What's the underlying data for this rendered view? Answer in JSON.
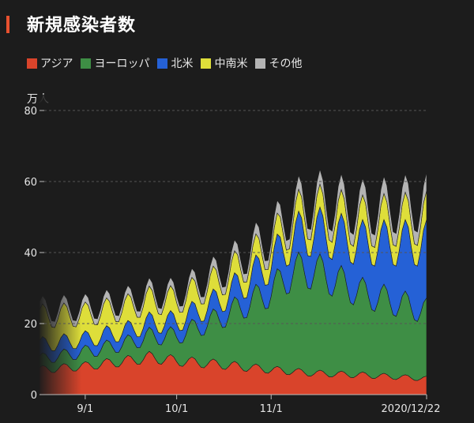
{
  "title": "新規感染者数",
  "colors": {
    "accent": "#e8512f",
    "asia": "#d9442b",
    "europe": "#3e8e45",
    "north_america": "#2561d6",
    "latin_america": "#dede3a",
    "other": "#b4b4b4"
  },
  "chart_data": {
    "type": "area",
    "stacked": true,
    "title": "新規感染者数",
    "ylabel": "万人",
    "ylim": [
      0,
      80
    ],
    "yticks": [
      0,
      20,
      40,
      60,
      80
    ],
    "grid": "dashed-horizontal",
    "legend_position": "top-left",
    "x_start": "2020-08-17",
    "x_end": "2020-12-22",
    "xticks": [
      {
        "date": "2020-09-01",
        "label": "9/1"
      },
      {
        "date": "2020-10-01",
        "label": "10/1"
      },
      {
        "date": "2020-11-01",
        "label": "11/1"
      },
      {
        "date": "2020-12-22",
        "label": "2020/12/22"
      }
    ],
    "series": [
      {
        "name": "アジア",
        "key": "asia",
        "points": [
          [
            "2020-08-17",
            7
          ],
          [
            "2020-09-01",
            8
          ],
          [
            "2020-09-15",
            9.5
          ],
          [
            "2020-09-22",
            10.5
          ],
          [
            "2020-10-01",
            9.5
          ],
          [
            "2020-10-15",
            8.5
          ],
          [
            "2020-11-01",
            7
          ],
          [
            "2020-11-15",
            6
          ],
          [
            "2020-12-01",
            5.5
          ],
          [
            "2020-12-22",
            4.5
          ]
        ]
      },
      {
        "name": "ヨーロッパ",
        "key": "europe",
        "points": [
          [
            "2020-08-17",
            3
          ],
          [
            "2020-09-01",
            4
          ],
          [
            "2020-09-15",
            5
          ],
          [
            "2020-10-01",
            7
          ],
          [
            "2020-10-15",
            13
          ],
          [
            "2020-11-01",
            22
          ],
          [
            "2020-11-08",
            28
          ],
          [
            "2020-11-15",
            29
          ],
          [
            "2020-12-01",
            23
          ],
          [
            "2020-12-22",
            19
          ]
        ]
      },
      {
        "name": "北米",
        "key": "north_america",
        "points": [
          [
            "2020-08-17",
            4
          ],
          [
            "2020-09-01",
            3.5
          ],
          [
            "2020-09-15",
            3.5
          ],
          [
            "2020-10-01",
            4
          ],
          [
            "2020-10-15",
            5
          ],
          [
            "2020-11-01",
            8
          ],
          [
            "2020-11-15",
            11
          ],
          [
            "2020-12-01",
            14
          ],
          [
            "2020-12-22",
            19
          ]
        ]
      },
      {
        "name": "中南米",
        "key": "latin_america",
        "points": [
          [
            "2020-08-17",
            8
          ],
          [
            "2020-09-01",
            7
          ],
          [
            "2020-09-15",
            6.5
          ],
          [
            "2020-10-01",
            6
          ],
          [
            "2020-10-15",
            5.5
          ],
          [
            "2020-11-01",
            5
          ],
          [
            "2020-11-15",
            5.5
          ],
          [
            "2020-12-01",
            6
          ],
          [
            "2020-12-22",
            7
          ]
        ]
      },
      {
        "name": "その他",
        "key": "other",
        "points": [
          [
            "2020-08-17",
            2
          ],
          [
            "2020-09-01",
            2
          ],
          [
            "2020-09-15",
            2
          ],
          [
            "2020-10-01",
            2
          ],
          [
            "2020-10-15",
            2.5
          ],
          [
            "2020-11-01",
            3
          ],
          [
            "2020-11-15",
            3.5
          ],
          [
            "2020-12-01",
            4
          ],
          [
            "2020-12-22",
            4.5
          ]
        ]
      }
    ]
  }
}
